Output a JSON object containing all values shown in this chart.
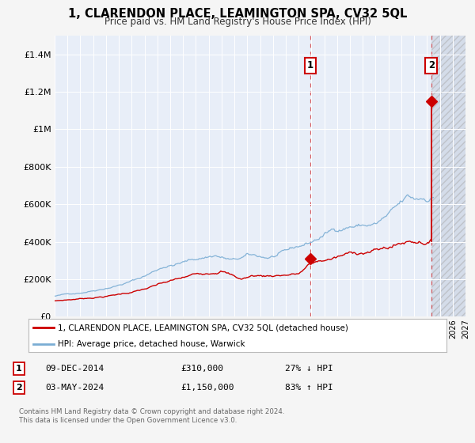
{
  "title": "1, CLARENDON PLACE, LEAMINGTON SPA, CV32 5QL",
  "subtitle": "Price paid vs. HM Land Registry's House Price Index (HPI)",
  "ylim": [
    0,
    1500000
  ],
  "xlim_start": 1995.0,
  "xlim_end": 2027.0,
  "yticks": [
    0,
    200000,
    400000,
    600000,
    800000,
    1000000,
    1200000,
    1400000
  ],
  "ytick_labels": [
    "£0",
    "£200K",
    "£400K",
    "£600K",
    "£800K",
    "£1M",
    "£1.2M",
    "£1.4M"
  ],
  "background_color": "#f5f5f5",
  "plot_bg_color": "#e8eef8",
  "plot_bg_color_after": "#dde3ed",
  "grid_color": "#ffffff",
  "red_line_color": "#cc0000",
  "blue_line_color": "#7aadd4",
  "sale1_year": 2014.92,
  "sale1_price": 310000,
  "sale1_label": "1",
  "sale2_year": 2024.33,
  "sale2_price": 1150000,
  "sale2_label": "2",
  "legend_red": "1, CLARENDON PLACE, LEAMINGTON SPA, CV32 5QL (detached house)",
  "legend_blue": "HPI: Average price, detached house, Warwick",
  "note1_num": "1",
  "note1_date": "09-DEC-2014",
  "note1_price": "£310,000",
  "note1_hpi": "27% ↓ HPI",
  "note2_num": "2",
  "note2_date": "03-MAY-2024",
  "note2_price": "£1,150,000",
  "note2_hpi": "83% ↑ HPI",
  "legend_red_label": "1, CLARENDON PLACE, LEAMINGTON SPA, CV32 5QL (detached house)",
  "legend_blue_label": "HPI: Average price, detached house, Warwick",
  "footer": "Contains HM Land Registry data © Crown copyright and database right 2024.\nThis data is licensed under the Open Government Licence v3.0."
}
